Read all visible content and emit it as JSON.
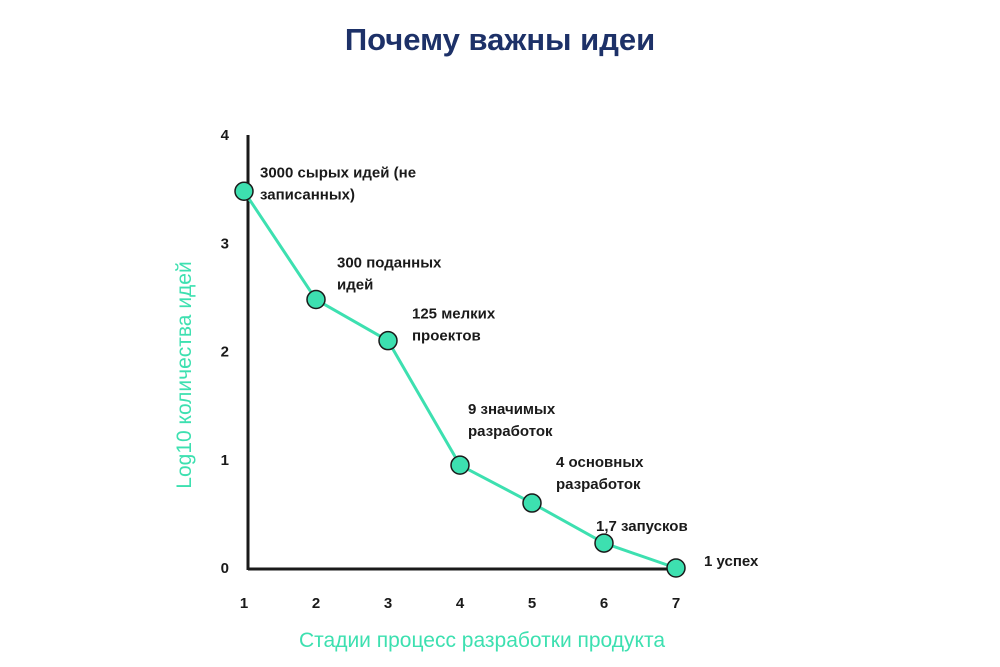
{
  "title": "Почему важны идеи",
  "colors": {
    "accent": "#3de0b0",
    "title": "#1d3168",
    "axis": "#1a1a1a"
  },
  "chart_data": {
    "type": "line",
    "title": "Почему важны идеи",
    "xlabel": "Стадии процесс разработки продукта",
    "ylabel": "Log10 количества идей",
    "x_ticks": [
      "1",
      "2",
      "3",
      "4",
      "5",
      "6",
      "7"
    ],
    "y_ticks": [
      "0",
      "1",
      "2",
      "3",
      "4"
    ],
    "xlim": [
      1,
      7
    ],
    "ylim": [
      0,
      4
    ],
    "grid": false,
    "legend": "none",
    "series": [
      {
        "x": [
          1,
          2,
          3,
          4,
          5,
          6,
          7
        ],
        "y": [
          3.48,
          2.48,
          2.1,
          0.95,
          0.6,
          0.23,
          0
        ]
      }
    ],
    "annotations": [
      {
        "lines": [
          "3000 сырых идей (не",
          "записанных)"
        ]
      },
      {
        "lines": [
          "300 поданных",
          "идей"
        ]
      },
      {
        "lines": [
          "125 мелких",
          "проектов"
        ]
      },
      {
        "lines": [
          "9 значимых",
          "разработок"
        ]
      },
      {
        "lines": [
          "4 основных",
          "разработок"
        ]
      },
      {
        "lines": [
          "1,7 запусков"
        ]
      },
      {
        "lines": [
          "1 успех"
        ]
      }
    ]
  }
}
